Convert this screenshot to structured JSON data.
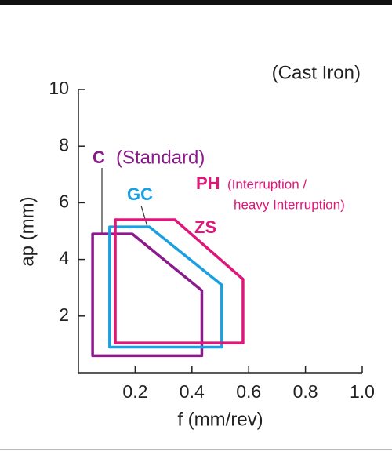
{
  "chart_data": {
    "type": "region",
    "subtitle": "(Cast Iron)",
    "x_label": "f (mm/rev)",
    "y_label": "ap (mm)",
    "xlim": [
      0,
      1.0
    ],
    "ylim": [
      0,
      10
    ],
    "xticks": [
      0.2,
      0.4,
      0.6,
      0.8,
      {
        "value": 1.0,
        "label": "1.0"
      }
    ],
    "yticks": [
      2,
      4,
      6,
      8,
      10
    ],
    "series": [
      {
        "name": "C",
        "color": "#8b1a8b",
        "x": [
          0.05,
          0.05,
          0.19,
          0.435,
          0.435
        ],
        "values": [
          0.6,
          4.9,
          4.9,
          2.9,
          0.6
        ]
      },
      {
        "name": "GC",
        "color": "#1aa0e0",
        "x": [
          0.11,
          0.11,
          0.25,
          0.505,
          0.505
        ],
        "values": [
          0.9,
          5.15,
          5.15,
          3.1,
          0.9
        ]
      },
      {
        "name": "ZS",
        "color": "#e0177a",
        "x": [
          0.13,
          0.13,
          0.34,
          0.58,
          0.58
        ],
        "values": [
          1.05,
          5.4,
          5.4,
          3.3,
          1.05
        ]
      }
    ],
    "annotations": [
      "(Standard)",
      "PH",
      "(Interruption /",
      "heavy Interruption)"
    ]
  }
}
